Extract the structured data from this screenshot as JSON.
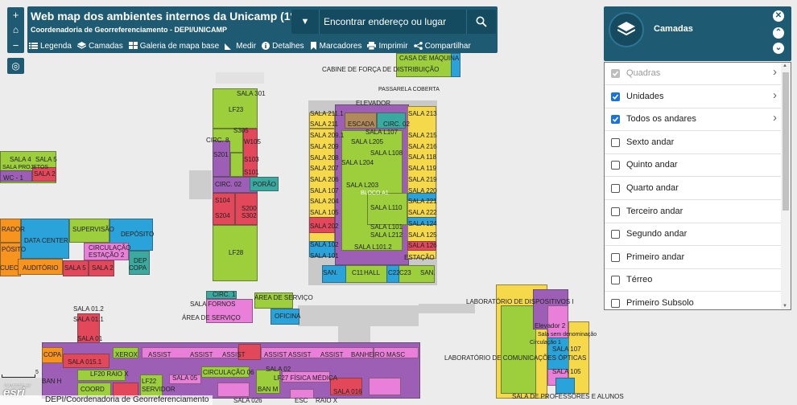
{
  "header": {
    "title": "Web map dos ambientes internos da Unicamp (1º e …",
    "subtitle": "Coordenadoria de Georreferenciamento - DEPI/UNICAMP",
    "search_placeholder": "Encontrar endereço ou lugar",
    "toolbar": [
      {
        "label": "Legenda",
        "icon": "list-icon"
      },
      {
        "label": "Camadas",
        "icon": "layers-icon"
      },
      {
        "label": "Galeria de mapa base",
        "icon": "grid-icon"
      },
      {
        "label": "Medir",
        "icon": "ruler-icon"
      },
      {
        "label": "Detalhes",
        "icon": "info-icon"
      },
      {
        "label": "Marcadores",
        "icon": "bookmark-icon"
      },
      {
        "label": "Imprimir",
        "icon": "printer-icon"
      },
      {
        "label": "Compartilhar",
        "icon": "share-icon"
      }
    ]
  },
  "zoom": {
    "in": "+",
    "home": "⌂",
    "out": "−",
    "locate": "◎"
  },
  "layers_panel": {
    "title": "Camadas",
    "items": [
      {
        "label": "Quadras",
        "checked": true,
        "disabled": true,
        "expandable": true
      },
      {
        "label": "Unidades",
        "checked": true,
        "disabled": false,
        "expandable": true
      },
      {
        "label": "Todos os andares",
        "checked": true,
        "disabled": false,
        "expandable": true
      },
      {
        "label": "Sexto andar",
        "checked": false,
        "disabled": false,
        "expandable": false
      },
      {
        "label": "Quinto andar",
        "checked": false,
        "disabled": false,
        "expandable": false
      },
      {
        "label": "Quarto andar",
        "checked": false,
        "disabled": false,
        "expandable": false
      },
      {
        "label": "Terceiro andar",
        "checked": false,
        "disabled": false,
        "expandable": false
      },
      {
        "label": "Segundo andar",
        "checked": false,
        "disabled": false,
        "expandable": false
      },
      {
        "label": "Primeiro andar",
        "checked": false,
        "disabled": false,
        "expandable": false
      },
      {
        "label": "Térreo",
        "checked": false,
        "disabled": false,
        "expandable": false
      },
      {
        "label": "Primeiro Subsolo",
        "checked": false,
        "disabled": false,
        "expandable": false
      }
    ]
  },
  "map": {
    "attribution": "DEPI/Coordenadoria de Georreferenciamento",
    "esri": "esri",
    "powered_by": "POWERED BY",
    "scale_label": "5",
    "labels": {
      "sala301": "SALA 301",
      "lf23": "LF23",
      "circ8": "CIRC. 8",
      "s305": "S305",
      "w105": "W105",
      "s201": "S201",
      "s103": "S103",
      "s101": "S101",
      "circ02": "CIRC. 02",
      "porao": "PORÃO",
      "s104": "S104",
      "s204": "S204",
      "s200": "S200",
      "s302": "S302",
      "lf28": "LF28",
      "casa_maquina": "CASA DE MÁQUINA",
      "cabine": "CABINE DE FORÇA DE DISTRIBUIÇÃO",
      "passarela": "PASSARELA COBERTA",
      "elevador": "ELEVADOR",
      "sala211_1": "SALA 211.1",
      "sala211": "SALA 211",
      "sala209_1": "SALA 209.1",
      "sala209": "SALA 209",
      "sala208": "SALA 208",
      "sala207": "SALA 207",
      "sala206": "SALA 206",
      "sala107": "SALA 107",
      "sala204": "SALA 204",
      "sala105": "SALA 105",
      "sala202": "SALA 202",
      "sala102": "SALA 102",
      "sala101": "SALA 101",
      "escada": "ESCADA",
      "circ02b": "CIRC. 02",
      "salaL107": "SALA L107",
      "salaL205": "SALA L205",
      "salaL108": "SALA L108",
      "salaL204": "SALA L204",
      "salaL203": "SALA L203",
      "bloco": "BLOCO A1",
      "salaL110": "SALA L110",
      "salaL101": "SALA L101",
      "salaL212": "SALA L212",
      "salaL1012": "SALA L101.2",
      "sala213": "SALA 213",
      "sala215": "SALA 215",
      "sala216": "SALA 216",
      "sala118": "SALA 118",
      "sala119": "SALA 119",
      "sala219": "SALA 219",
      "sala220": "SALA 220",
      "sala221": "SALA 221",
      "sala222": "SALA 222",
      "sala124": "SALA 124",
      "sala125": "SALA 125",
      "sala126": "SALA 126",
      "estacao": "ESTAÇÃO",
      "san": "SAN.",
      "c11": "C11",
      "hall": "HALL",
      "c22": "C22",
      "c23": "C23",
      "san2": "SAN.",
      "sala4": "SALA 4",
      "sala5": "SALA 5",
      "sala2": "SALA 2",
      "wc1": "WC - 1",
      "proj": "SALA PROJETOS",
      "rador": "RADOR",
      "datacenter": "DATA CENTER",
      "supervisao": "SUPERVISÃO",
      "deposito": "DEPÓSITO",
      "posito": "PÓSITO",
      "circulacao": "CIRCULAÇÃO",
      "estacao2": "ESTAÇÃO 2",
      "cuec": "CUEC",
      "auditorio": "AUDITÓRIO",
      "sala5b": "SALA 5",
      "sala2b": "SALA 2",
      "depcopa": "DEP",
      "copa": "COPA",
      "circ1": "CIRC. 1",
      "salafornos": "SALA FORNOS",
      "areaservico": "ÁREA DE SERVIÇO",
      "areaservico2": "ÁREA DE SERVIÇO",
      "oficina": "OFICINA",
      "labdisp": "LABORATÓRIO DE DISPOSITIVOS I",
      "elevador2": "Elevador 2",
      "semdenom": "Sala sem denominação",
      "circ1b": "Circulação 1",
      "sala107b": "SALA 107",
      "sala105b": "SALA 105",
      "labcom": "LABORATÓRIO DE COMUNICAÇÕES ÓPTICAS",
      "salaprof": "SALA DE PROFESSORES E ALUNOS",
      "sala012": "SALA 01.2",
      "sala011": "SALA 01.1",
      "sala01": "SALA 01",
      "copa2": "COPA",
      "sala0151": "SALA 015.1",
      "xerox": "XEROX",
      "assist": "ASSIST",
      "banheiro": "BANHEIRO MASC",
      "lf20": "LF20 RAIO X",
      "lf22": "LF22",
      "sala05": "SALA 05",
      "circ06": "CIRCULAÇÃO 06",
      "sala02": "SALA 02",
      "lf27": "LF27 FÍSICA MÉDICA",
      "coord": "COORD",
      "servidor": "SERVIDOR",
      "banm": "BAN M",
      "banh": "BAN H",
      "sala016": "SALA 016",
      "sala026": "SALA 026",
      "esc": "ESC",
      "raiox": "RAIO X"
    }
  },
  "colors": {
    "panel": "#1e5a72",
    "yellowgreen": "#9ccf3b",
    "purple": "#9c5fb5",
    "red": "#e3485a",
    "yellow": "#f5d94a",
    "orange": "#f7941d",
    "teal": "#3aa99f",
    "pink": "#e97fd8",
    "blue": "#29a3d9"
  }
}
